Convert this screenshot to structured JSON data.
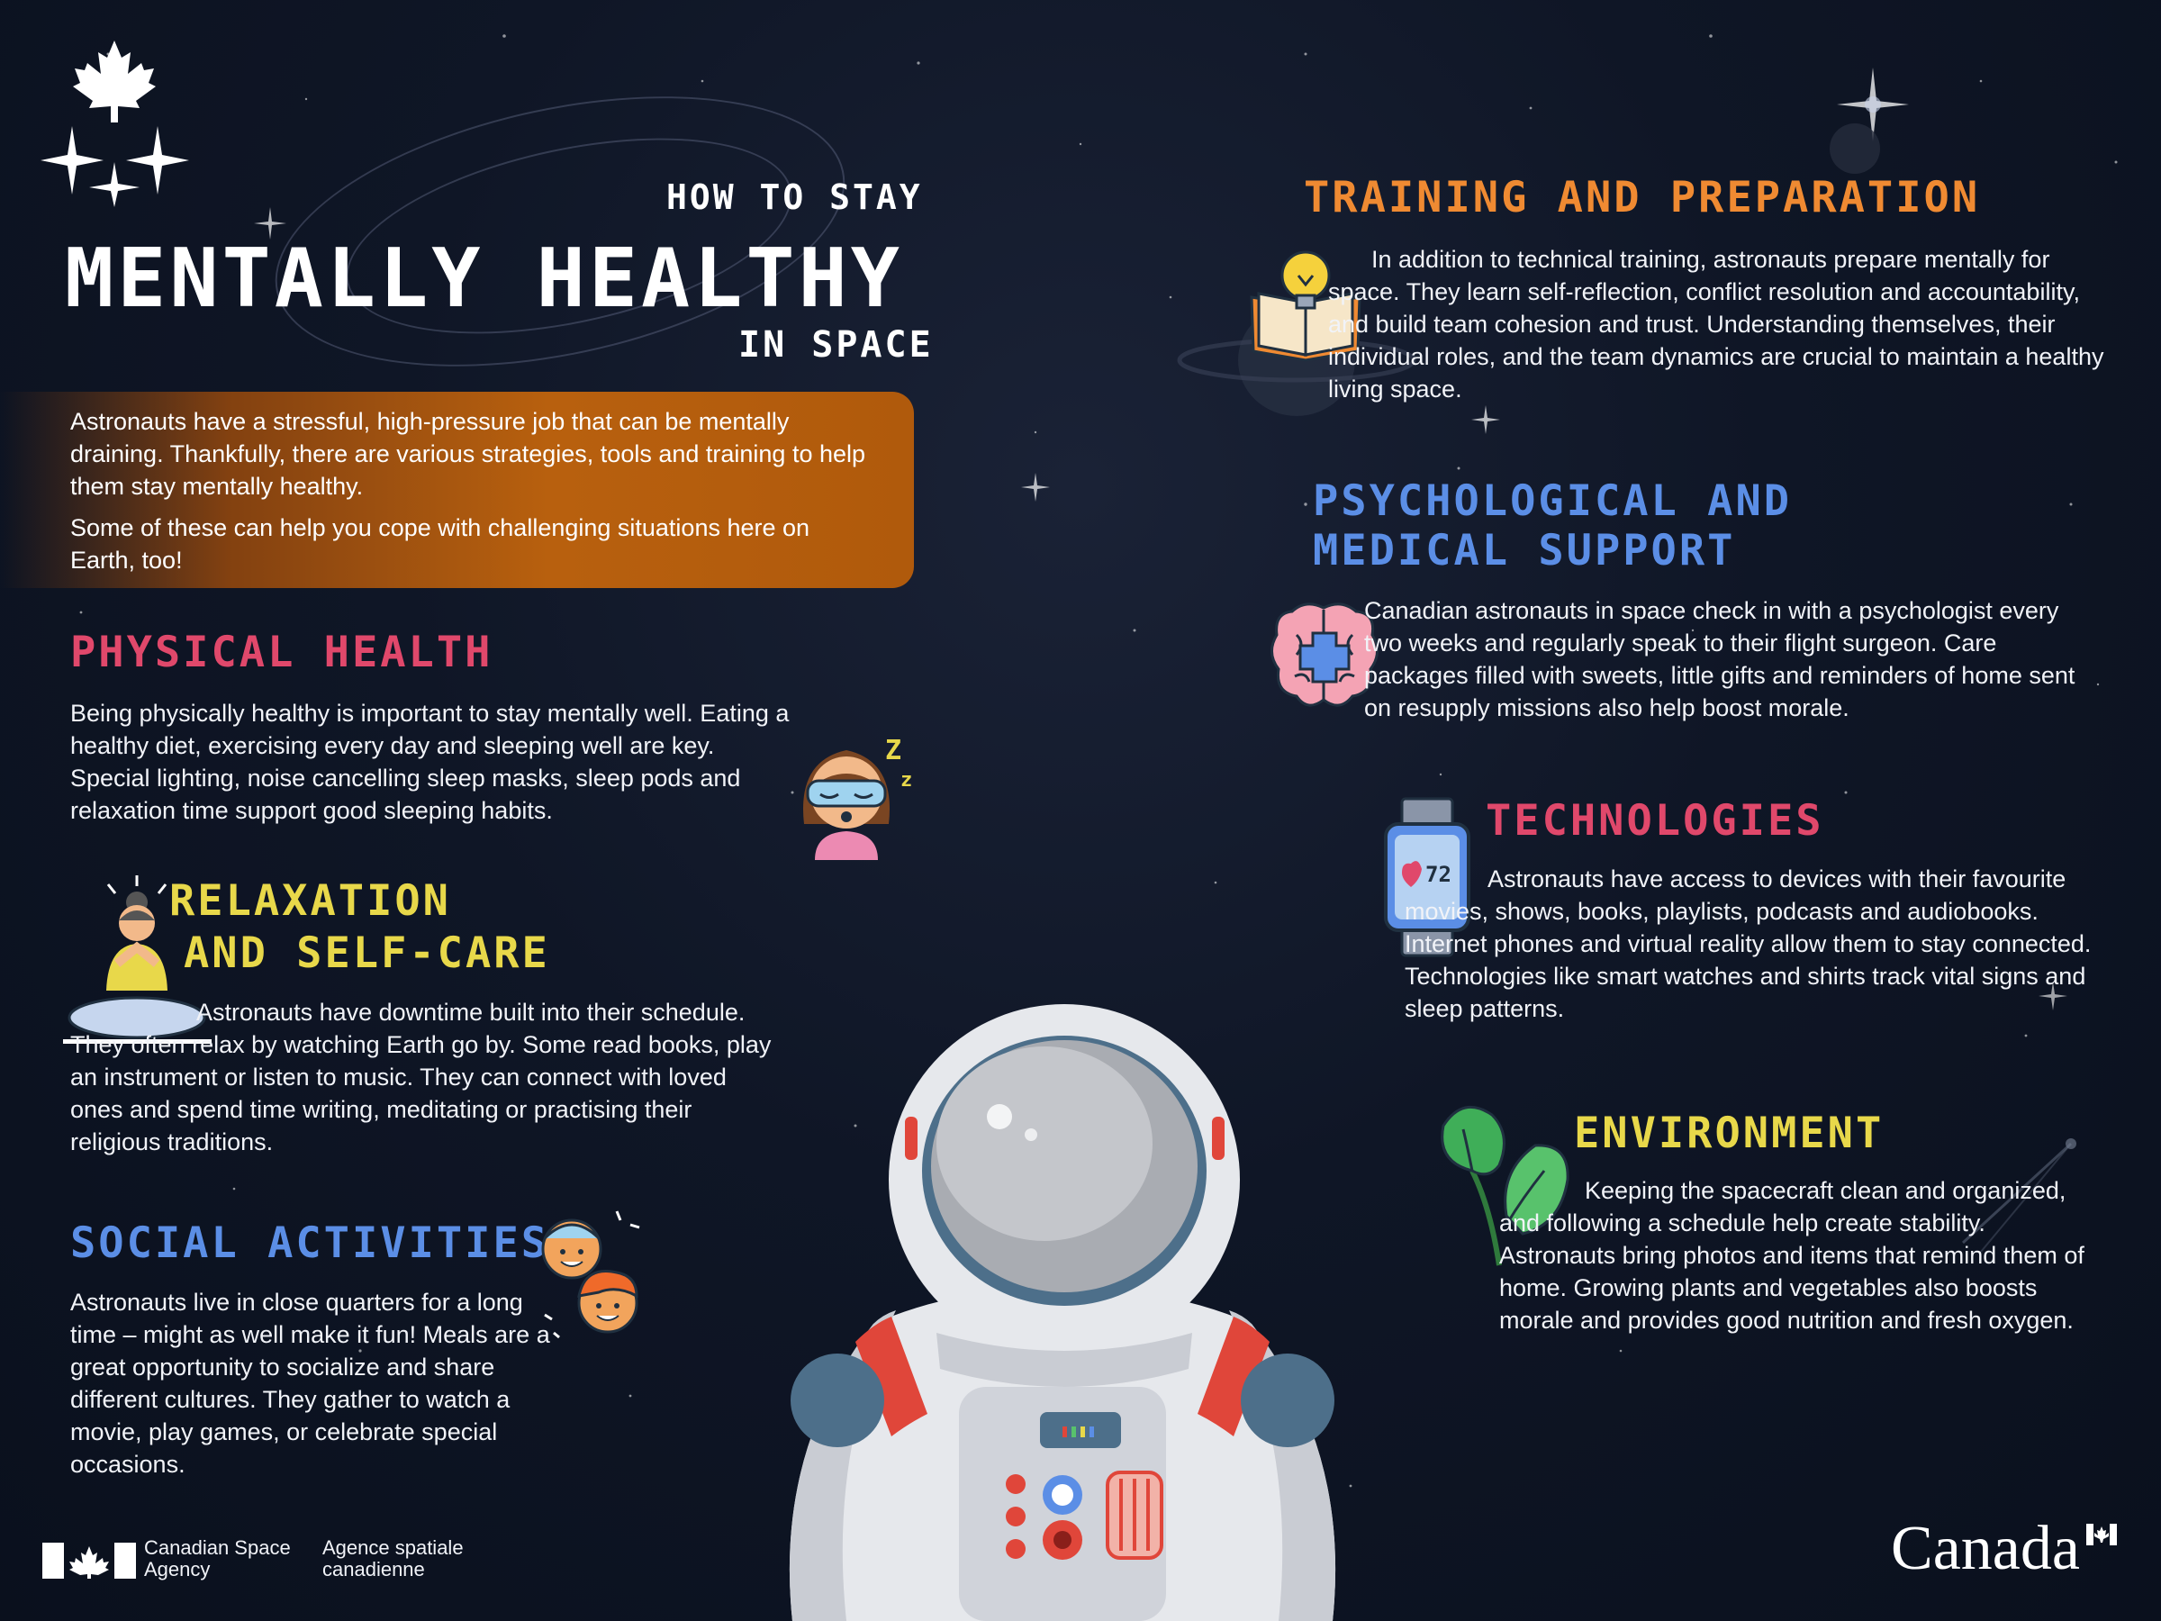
{
  "title": {
    "top": "HOW TO STAY",
    "main": "MENTALLY HEALTHY",
    "bottom": "IN SPACE"
  },
  "intro": {
    "paragraph_1": "Astronauts have a stressful, high-pressure job that can be mentally draining. Thankfully, there are various strategies, tools and training to help them stay mentally healthy.",
    "paragraph_2": "Some of these can help you cope with challenging situations here on Earth, too!"
  },
  "sections": {
    "physical_health": {
      "title": "PHYSICAL HEALTH",
      "text": "Being physically healthy is important to stay mentally well. Eating a healthy diet, exercising every day and sleeping well are key. Special lighting, noise cancelling sleep masks, sleep pods and relaxation time support good sleeping habits."
    },
    "relaxation": {
      "title_line_1": "RELAXATION",
      "title_line_2": "AND SELF-CARE",
      "text": "Astronauts have downtime built into their schedule. They often relax by watching Earth go by. Some read books, play an instrument or listen to music. They can connect with loved ones and spend time writing, meditating or practising their religious traditions."
    },
    "social": {
      "title": "SOCIAL ACTIVITIES",
      "text": "Astronauts live in close quarters for a long time – might as well make it fun! Meals are a great opportunity to socialize and share different cultures. They gather to watch a movie, play games, or celebrate special occasions."
    },
    "training": {
      "title": "TRAINING AND PREPARATION",
      "text": "In addition to technical training, astronauts prepare mentally for space. They learn self-reflection, conflict resolution and accountability, and build team cohesion and trust. Understanding themselves, their individual roles, and the team dynamics are crucial to maintain a healthy living space."
    },
    "psych": {
      "title_line_1": "PSYCHOLOGICAL AND",
      "title_line_2": "MEDICAL SUPPORT",
      "text": "Canadian astronauts in space check in with a psychologist every two weeks and regularly speak to their flight surgeon. Care packages filled with sweets, little gifts and reminders of home sent on resupply missions also help boost morale."
    },
    "technologies": {
      "title": "TECHNOLOGIES",
      "text": "Astronauts have access to devices with their favourite movies, shows, books, playlists, podcasts and audiobooks. Internet phones and virtual reality allow them to stay connected. Technologies like smart watches and shirts track vital signs and sleep patterns.",
      "watch_reading": "72"
    },
    "environment": {
      "title": "ENVIRONMENT",
      "text": "Keeping the spacecraft clean and organized, and following a schedule help create stability. Astronauts bring photos and items that remind them of home. Growing plants and vegetables also boosts morale and provides good nutrition and fresh oxygen."
    }
  },
  "footer": {
    "agency_en_1": "Canadian Space",
    "agency_en_2": "Agency",
    "agency_fr_1": "Agence spatiale",
    "agency_fr_2": "canadienne",
    "wordmark": "Canada"
  },
  "icons": {
    "csa_logo": "maple-leaf-stars-icon",
    "sleep": "sleep-mask-person-icon",
    "meditation": "meditating-person-icon",
    "social": "two-faces-icon",
    "training": "lightbulb-book-icon",
    "psych": "brain-medical-icon",
    "technologies": "smartwatch-icon",
    "environment": "leafy-plant-icon",
    "astronaut": "astronaut-icon"
  },
  "colors": {
    "background": "#0f1626",
    "physical_health": "#e0486b",
    "relaxation": "#e8d84a",
    "social": "#5b8ee6",
    "training": "#ef8a32",
    "psych": "#5b8ee6",
    "technologies": "#e0486b",
    "environment": "#e8d84a",
    "intro_panel": "#b8600e"
  }
}
